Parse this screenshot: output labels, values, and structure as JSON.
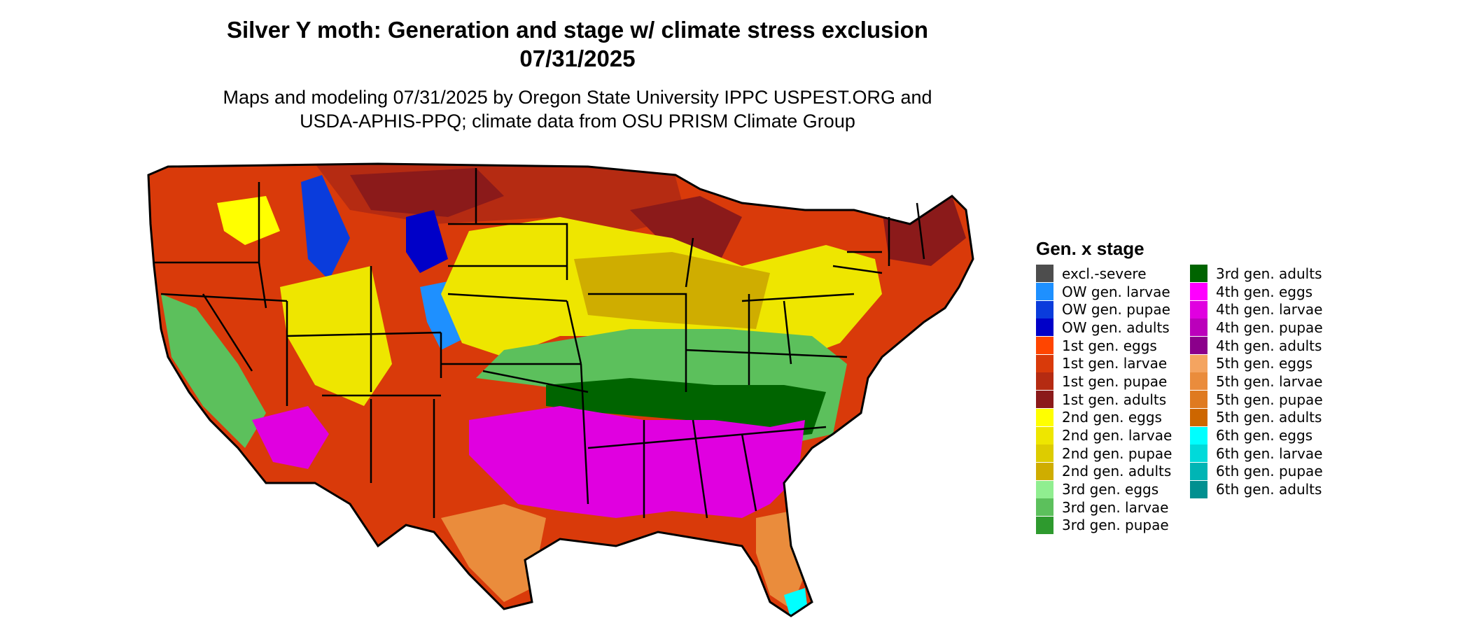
{
  "header": {
    "title_line1": "Silver Y moth: Generation and stage w/ climate stress exclusion",
    "title_line2": "07/31/2025",
    "subtitle_line1": "Maps and modeling 07/31/2025 by Oregon State University IPPC USPEST.ORG and",
    "subtitle_line2": "USDA-APHIS-PPQ; climate data from OSU PRISM Climate Group"
  },
  "legend": {
    "title": "Gen. x stage",
    "col1": [
      {
        "label": "excl.-severe",
        "color": "#4d4d4d"
      },
      {
        "label": "OW gen. larvae",
        "color": "#1e90ff"
      },
      {
        "label": "OW gen. pupae",
        "color": "#0a3cdc"
      },
      {
        "label": "OW gen. adults",
        "color": "#0000c8"
      },
      {
        "label": "1st gen. eggs",
        "color": "#ff4500"
      },
      {
        "label": "1st gen. larvae",
        "color": "#d93a0a"
      },
      {
        "label": "1st gen. pupae",
        "color": "#b52b12"
      },
      {
        "label": "1st gen. adults",
        "color": "#8b1a1a"
      },
      {
        "label": "2nd gen. eggs",
        "color": "#ffff00"
      },
      {
        "label": "2nd gen. larvae",
        "color": "#eee600"
      },
      {
        "label": "2nd gen. pupae",
        "color": "#ddcc00"
      },
      {
        "label": "2nd gen. adults",
        "color": "#cfad00"
      },
      {
        "label": "3rd gen. eggs",
        "color": "#90ee90"
      },
      {
        "label": "3rd gen. larvae",
        "color": "#5cc05c"
      },
      {
        "label": "3rd gen. pupae",
        "color": "#2e9a2e"
      }
    ],
    "col2": [
      {
        "label": "3rd gen. adults",
        "color": "#006400"
      },
      {
        "label": "4th gen. eggs",
        "color": "#ff00ff"
      },
      {
        "label": "4th gen. larvae",
        "color": "#e000e0"
      },
      {
        "label": "4th gen. pupae",
        "color": "#bb00bb"
      },
      {
        "label": "4th gen. adults",
        "color": "#8b008b"
      },
      {
        "label": "5th gen. eggs",
        "color": "#f4a460"
      },
      {
        "label": "5th gen. larvae",
        "color": "#ea8c3c"
      },
      {
        "label": "5th gen. pupae",
        "color": "#df7a20"
      },
      {
        "label": "5th gen. adults",
        "color": "#cd6600"
      },
      {
        "label": "6th gen. eggs",
        "color": "#00ffff"
      },
      {
        "label": "6th gen. larvae",
        "color": "#00dada"
      },
      {
        "label": "6th gen. pupae",
        "color": "#00b5b5"
      },
      {
        "label": "6th gen. adults",
        "color": "#009090"
      }
    ]
  }
}
